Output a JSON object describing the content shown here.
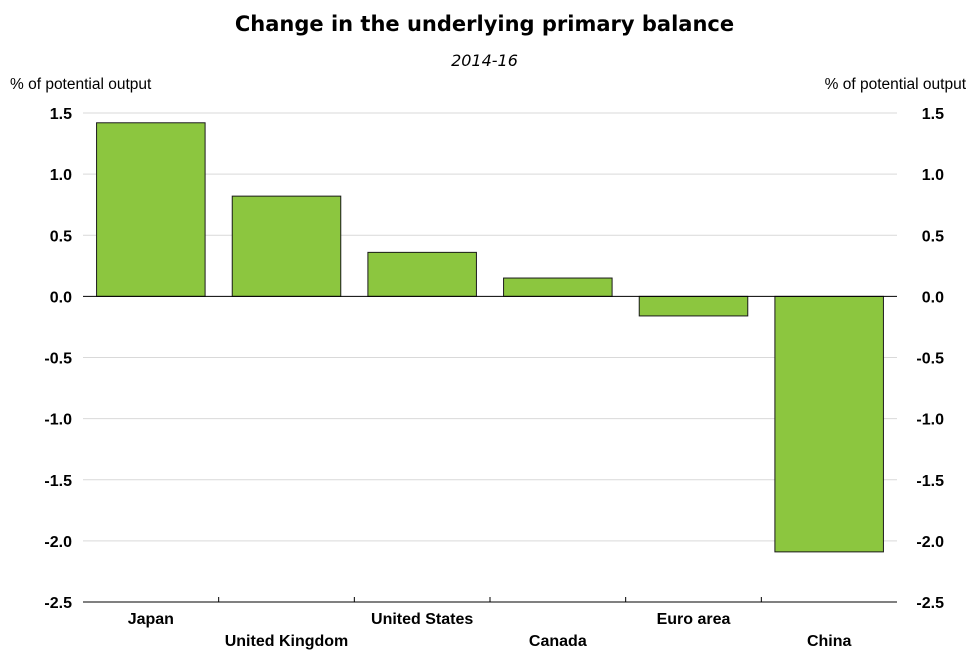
{
  "chart_data": {
    "type": "bar",
    "title": "Change in the underlying primary balance",
    "subtitle": "2014-16",
    "ylabel_left": "% of potential output",
    "ylabel_right": "% of potential output",
    "categories": [
      "Japan",
      "United Kingdom",
      "United States",
      "Canada",
      "Euro area",
      "China"
    ],
    "values": [
      1.42,
      0.82,
      0.36,
      0.15,
      -0.16,
      -2.09
    ],
    "ylim": [
      -2.5,
      1.5
    ],
    "yticks": [
      1.5,
      1.0,
      0.5,
      0.0,
      -0.5,
      -1.0,
      -1.5,
      -2.0,
      -2.5
    ],
    "ytick_labels": [
      "1.5",
      "1.0",
      "0.5",
      "0.0",
      "-0.5",
      "-1.0",
      "-1.5",
      "-2.0",
      "-2.5"
    ],
    "grid": true,
    "legend": "none",
    "bar_color": "#8cc63f",
    "bar_edge_color": "#1a1a1a"
  }
}
